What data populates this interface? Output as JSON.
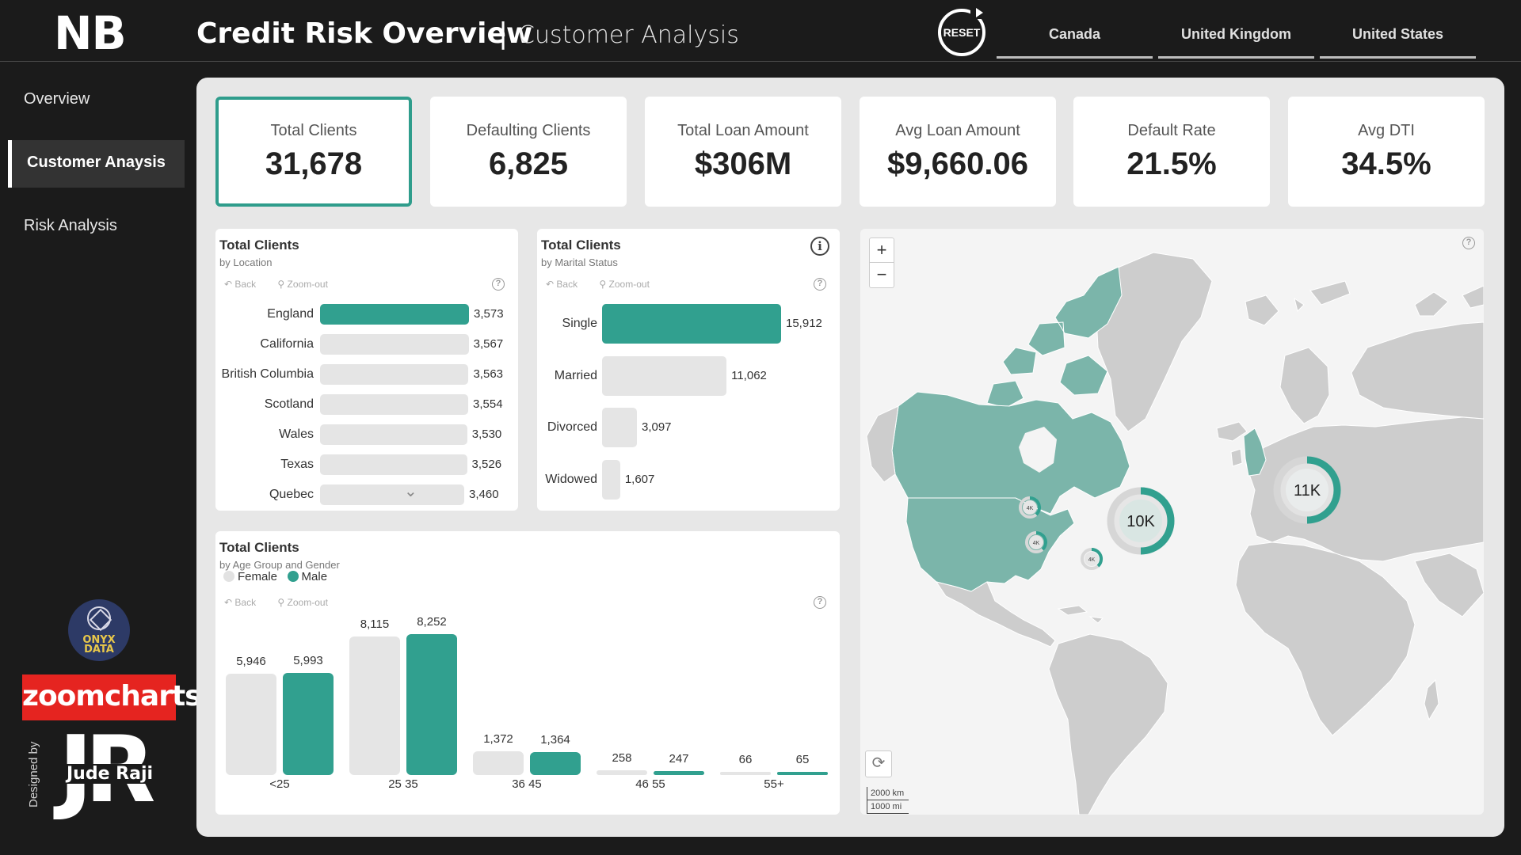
{
  "header": {
    "logo": "NB",
    "title": "Credit Risk Overview",
    "separator": "|",
    "subtitle": "Customer Analysis",
    "reset_label": "RESET",
    "country_tabs": [
      "Canada",
      "United Kingdom",
      "United States"
    ]
  },
  "sidebar": {
    "items": [
      "Overview",
      "Customer Anaysis",
      "Risk Analysis"
    ],
    "active_index": 1,
    "logos": {
      "onyx": "ONYX DATA",
      "zoomcharts": "zoomcharts",
      "designed_by": "Designed by",
      "author": "Jude Raji",
      "monogram": "JR"
    }
  },
  "kpis": [
    {
      "label": "Total Clients",
      "value": "31,678"
    },
    {
      "label": "Defaulting Clients",
      "value": "6,825"
    },
    {
      "label": "Total Loan Amount",
      "value": "$306M"
    },
    {
      "label": "Avg Loan Amount",
      "value": "$9,660.06"
    },
    {
      "label": "Default Rate",
      "value": "21.5%"
    },
    {
      "label": "Avg DTI",
      "value": "34.5%"
    }
  ],
  "chart_tools": {
    "back": "Back",
    "zoom_out": "Zoom-out",
    "help": "?",
    "info": "i"
  },
  "location_card": {
    "title": "Total Clients",
    "subtitle": "by Location"
  },
  "marital_card": {
    "title": "Total Clients",
    "subtitle": "by Marital Status"
  },
  "age_card": {
    "title": "Total Clients",
    "subtitle": "by Age Group and Gender"
  },
  "chart_data": [
    {
      "type": "bar",
      "orientation": "horizontal",
      "title": "Total Clients",
      "subtitle": "by Location",
      "categories": [
        "England",
        "California",
        "British Columbia",
        "Scotland",
        "Wales",
        "Texas",
        "Quebec"
      ],
      "values": [
        3573,
        3567,
        3563,
        3554,
        3530,
        3526,
        3460
      ],
      "value_labels": [
        "3,573",
        "3,567",
        "3,563",
        "3,554",
        "3,530",
        "3,526",
        "3,460"
      ],
      "highlighted": "England",
      "colors": {
        "highlight": "#31a08f",
        "other": "#e5e5e5"
      }
    },
    {
      "type": "bar",
      "orientation": "horizontal",
      "title": "Total Clients",
      "subtitle": "by Marital Status",
      "categories": [
        "Single",
        "Married",
        "Divorced",
        "Widowed"
      ],
      "values": [
        15912,
        11062,
        3097,
        1607
      ],
      "value_labels": [
        "15,912",
        "11,062",
        "3,097",
        "1,607"
      ],
      "highlighted": "Single",
      "colors": {
        "highlight": "#31a08f",
        "other": "#e5e5e5"
      }
    },
    {
      "type": "bar",
      "orientation": "vertical",
      "title": "Total Clients",
      "subtitle": "by Age Group and Gender",
      "categories": [
        "<25",
        "25-35",
        "36-45",
        "46-55",
        "55+"
      ],
      "category_labels": [
        "<25",
        "25 35",
        "36 45",
        "46 55",
        "55+"
      ],
      "series": [
        {
          "name": "Female",
          "color": "#e5e5e5",
          "values": [
            5946,
            8115,
            1372,
            258,
            66
          ],
          "value_labels": [
            "5,946",
            "8,115",
            "1,372",
            "258",
            "66"
          ]
        },
        {
          "name": "Male",
          "color": "#31a08f",
          "values": [
            5993,
            8252,
            1364,
            247,
            65
          ],
          "value_labels": [
            "5,993",
            "8,252",
            "1,364",
            "247",
            "65"
          ]
        }
      ]
    },
    {
      "type": "map",
      "region": "world",
      "clusters": [
        {
          "location": "United States",
          "label": "10K",
          "value": 10000
        },
        {
          "location": "United Kingdom",
          "label": "11K",
          "value": 11000
        },
        {
          "location": "Vancouver area",
          "label": "4K"
        },
        {
          "location": "California",
          "label": "4K"
        },
        {
          "location": "Texas",
          "label": "4K"
        }
      ],
      "scale": [
        "2000 km",
        "1000 mi"
      ],
      "controls": {
        "zoom_in": "+",
        "zoom_out": "−"
      },
      "colors": {
        "selected_land": "#7bb5aa",
        "other_land": "#cdcdcd",
        "accent": "#31a08f"
      }
    }
  ]
}
